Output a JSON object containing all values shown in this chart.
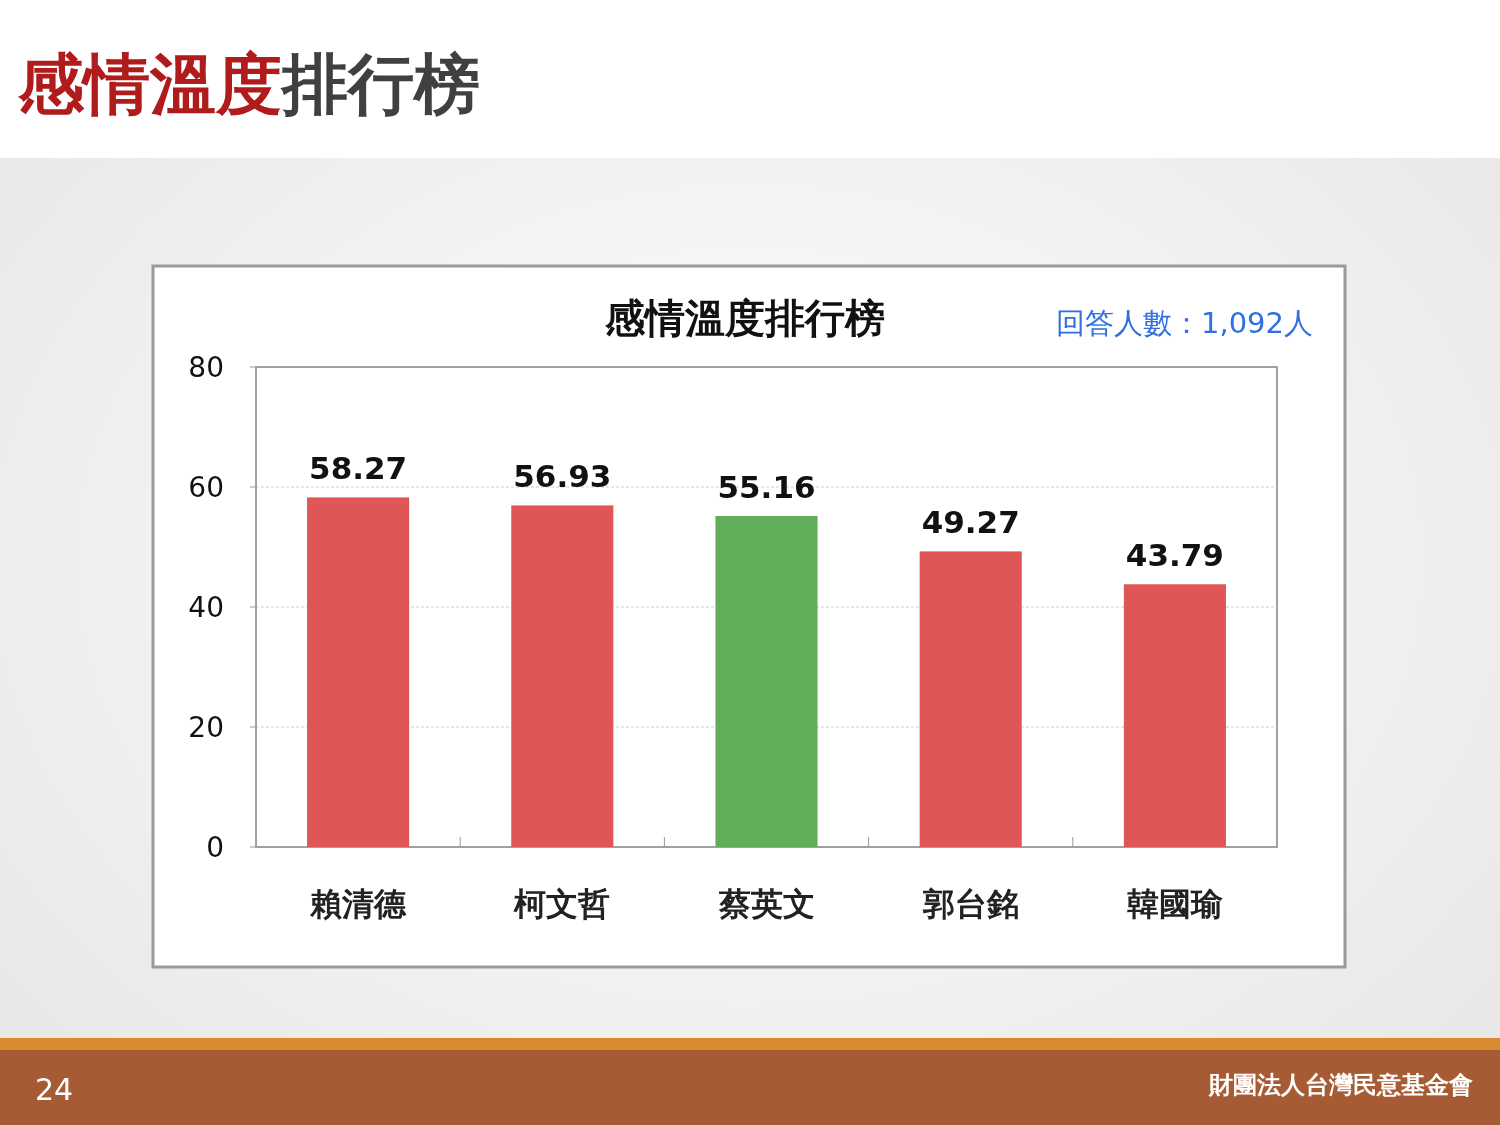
{
  "chart_data": {
    "type": "bar",
    "title": "感情溫度排行榜",
    "categories": [
      "賴清德",
      "柯文哲",
      "蔡英文",
      "郭台銘",
      "韓國瑜"
    ],
    "values": [
      58.27,
      56.93,
      55.16,
      49.27,
      43.79
    ],
    "colors": [
      "#e05555",
      "#e05555",
      "#62ad5a",
      "#e05555",
      "#e05555"
    ],
    "ylim": [
      0,
      80
    ],
    "yticks": [
      0,
      20,
      40,
      60,
      80
    ],
    "grid": "y",
    "data_labels": true,
    "annotations": [
      "感情溫度排行榜",
      "回答人數：1,092人",
      "24",
      "財團法人台灣民意基金會"
    ]
  }
}
